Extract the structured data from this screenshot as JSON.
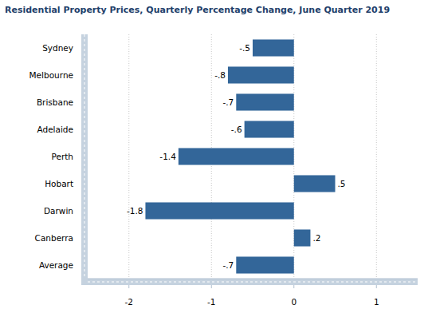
{
  "chart_data": {
    "type": "bar",
    "orientation": "horizontal",
    "title": "Residential Property Prices, Quarterly Percentage Change, June Quarter 2019",
    "categories": [
      "Sydney",
      "Melbourne",
      "Brisbane",
      "Adelaide",
      "Perth",
      "Hobart",
      "Darwin",
      "Canberra",
      "Average"
    ],
    "values": [
      -0.5,
      -0.8,
      -0.7,
      -0.6,
      -1.4,
      0.5,
      -1.8,
      0.2,
      -0.7
    ],
    "value_labels": [
      "-.5",
      "-.8",
      "-.7",
      "-.6",
      "-1.4",
      ".5",
      "-1.8",
      ".2",
      "-.7"
    ],
    "color": "#336699",
    "xlim": [
      -2.5,
      1.5
    ],
    "xticks": [
      -2,
      -1,
      0,
      1
    ],
    "grid": true,
    "data_labels": true
  }
}
